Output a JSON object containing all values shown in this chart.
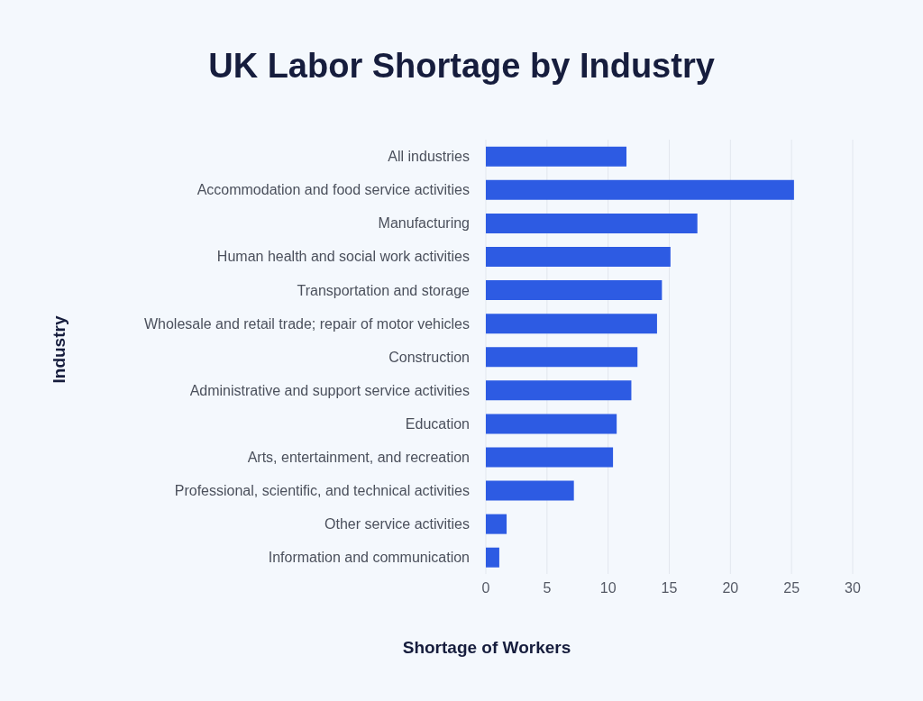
{
  "chart_data": {
    "type": "bar",
    "orientation": "horizontal",
    "title": "UK Labor Shortage by Industry",
    "xlabel": "Shortage of Workers",
    "ylabel": "Industry",
    "categories": [
      "All industries",
      "Accommodation and food service activities",
      "Manufacturing",
      "Human health and social work activities",
      "Transportation and storage",
      "Wholesale and retail trade; repair of motor vehicles",
      "Construction",
      "Administrative and support service activities",
      "Education",
      "Arts, entertainment, and recreation",
      "Professional, scientific, and technical activities",
      "Other service activities",
      "Information and communication"
    ],
    "values": [
      11.5,
      25.2,
      17.3,
      15.1,
      14.4,
      14.0,
      12.4,
      11.9,
      10.7,
      10.4,
      7.2,
      1.7,
      1.1
    ],
    "color": "#2d5be3",
    "xlim": [
      0,
      30
    ],
    "xticks": [
      0,
      5,
      10,
      15,
      20,
      25,
      30
    ],
    "grid": "x"
  }
}
